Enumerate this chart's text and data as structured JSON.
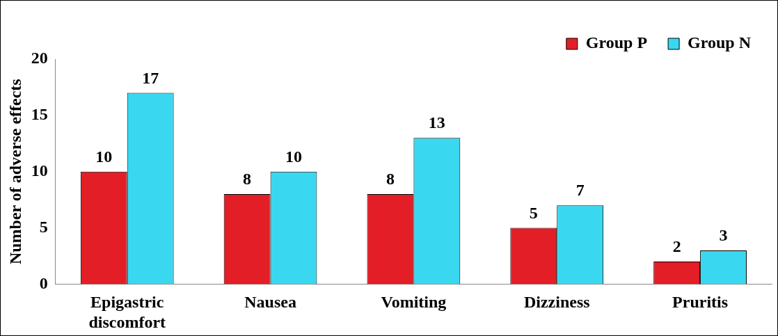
{
  "chart_data": {
    "type": "bar",
    "ylabel": "Number of adverse effects",
    "categories": [
      "Epigastric discomfort",
      "Nausea",
      "Vomiting",
      "Dizziness",
      "Pruritis"
    ],
    "series": [
      {
        "name": "Group P",
        "color": "#e41e26",
        "values": [
          10,
          8,
          8,
          5,
          2
        ]
      },
      {
        "name": "Group N",
        "color": "#3ad8f0",
        "values": [
          17,
          10,
          13,
          7,
          3
        ]
      }
    ],
    "ylim": [
      0,
      20
    ],
    "yticks": [
      0,
      5,
      10,
      15,
      20
    ],
    "grid": false,
    "legend": "top right",
    "data_labels": true
  }
}
